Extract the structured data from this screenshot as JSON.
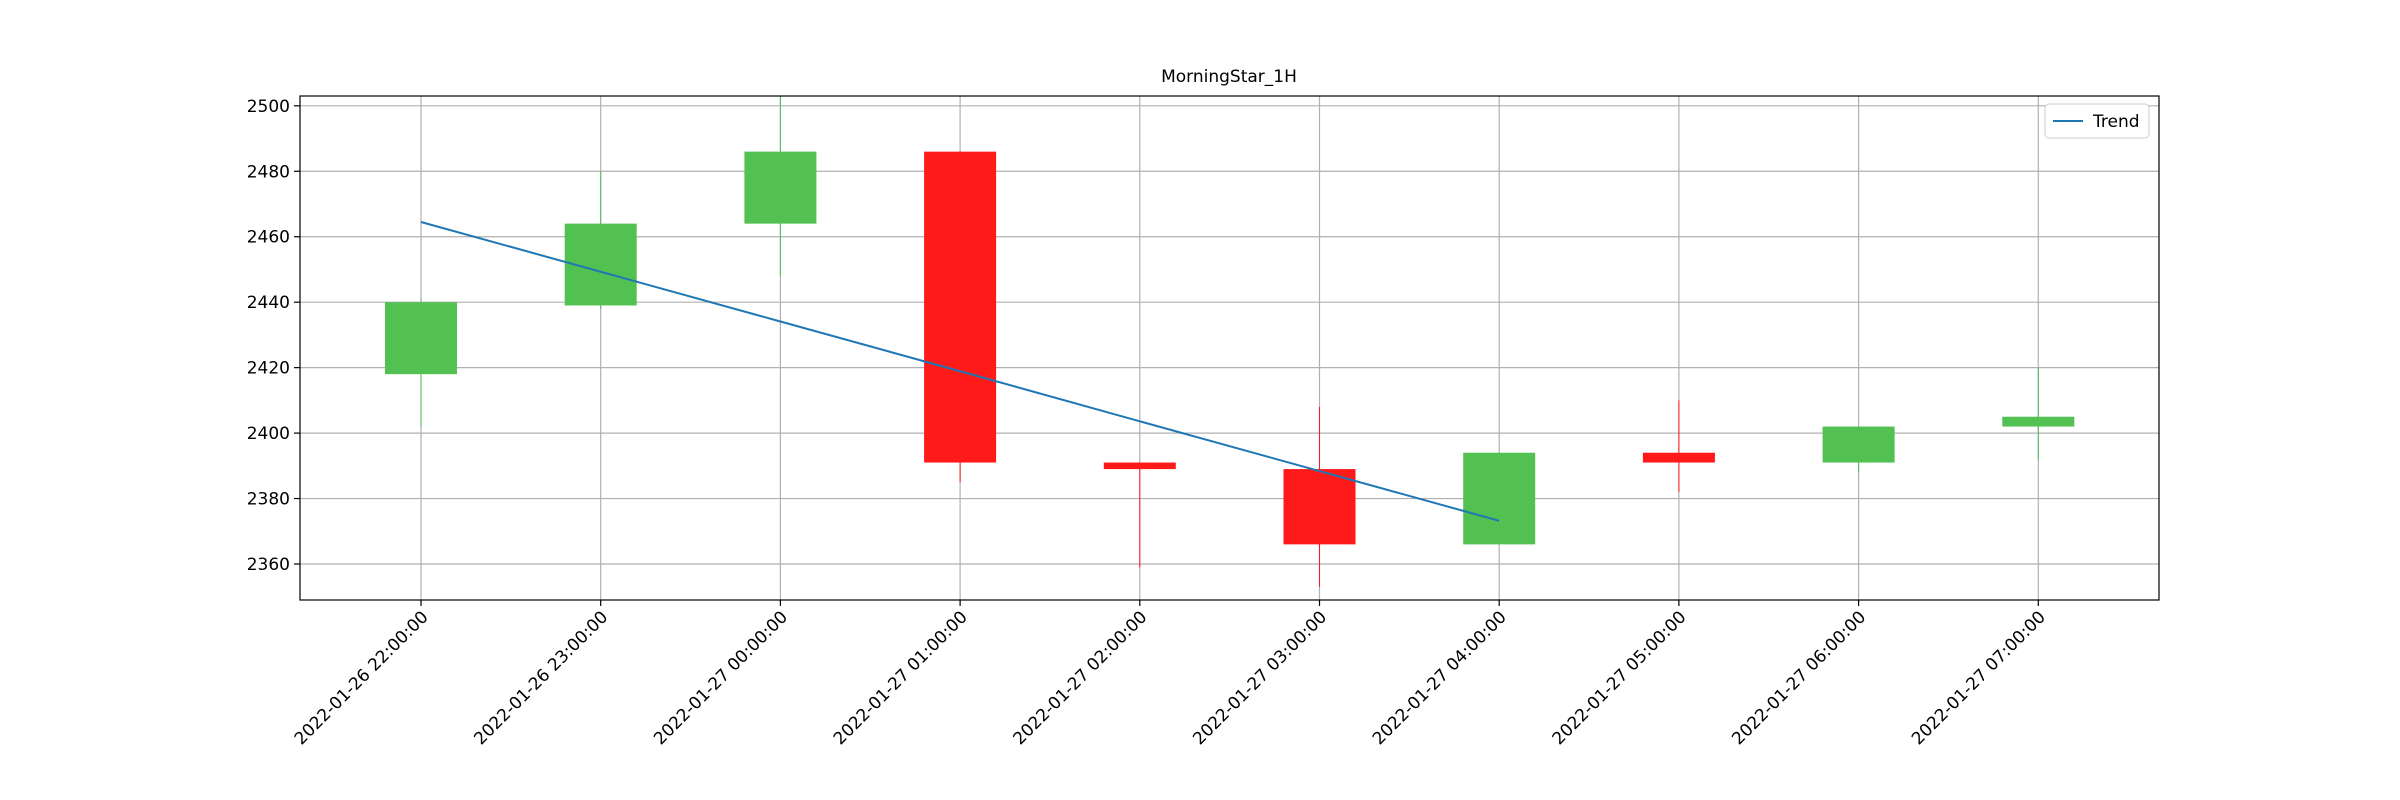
{
  "chart_data": {
    "type": "candlestick",
    "title": "MorningStar_1H",
    "categories": [
      "2022-01-26 22:00:00",
      "2022-01-26 23:00:00",
      "2022-01-27 00:00:00",
      "2022-01-27 01:00:00",
      "2022-01-27 02:00:00",
      "2022-01-27 03:00:00",
      "2022-01-27 04:00:00",
      "2022-01-27 05:00:00",
      "2022-01-27 06:00:00",
      "2022-01-27 07:00:00"
    ],
    "open": [
      2418,
      2439,
      2464,
      2486,
      2391,
      2389,
      2366,
      2394,
      2391,
      2402
    ],
    "high": [
      2441,
      2480,
      2503,
      2486,
      2391,
      2408,
      2394,
      2410,
      2402,
      2420
    ],
    "low": [
      2402,
      2438,
      2448,
      2385,
      2359,
      2353,
      2366,
      2382,
      2388,
      2392
    ],
    "close": [
      2440,
      2464,
      2486,
      2391,
      2389,
      2366,
      2394,
      2391,
      2402,
      2405
    ],
    "up_color": "#52c152",
    "down_color": "#ff1a1a",
    "series": [
      {
        "name": "Trend",
        "color": "#1f77b4",
        "values": [
          2464.5,
          2449.3,
          2434.1,
          2418.9,
          2403.6,
          2388.4,
          2373.2,
          null,
          null,
          null
        ]
      }
    ],
    "ylim": [
      2349,
      2503
    ],
    "yticks": [
      2360,
      2380,
      2400,
      2420,
      2440,
      2460,
      2480,
      2500
    ],
    "grid": true,
    "legend": "upper right"
  }
}
